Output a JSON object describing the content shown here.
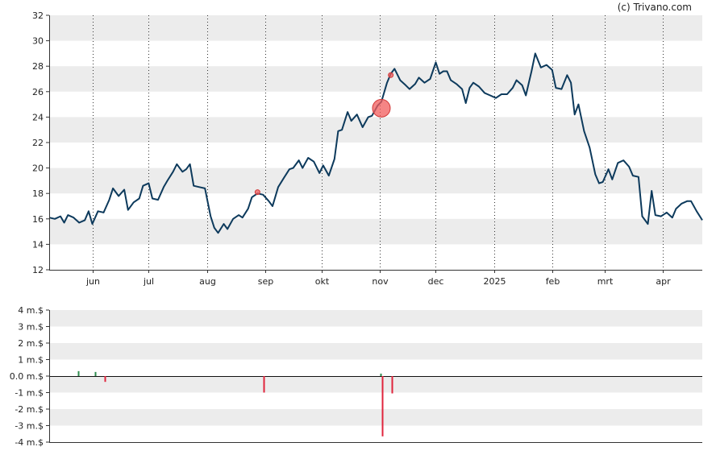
{
  "credit": "(c) Trivano.com",
  "chart_data": [
    {
      "type": "line",
      "title": "",
      "xlabel": "",
      "ylabel": "",
      "ylim": [
        12,
        32
      ],
      "yticks": [
        12,
        14,
        16,
        18,
        20,
        22,
        24,
        26,
        28,
        30,
        32
      ],
      "grid": "alternating horizontal bands, dotted vertical month lines",
      "months": [
        {
          "label": "jun",
          "date": "2024-06-01"
        },
        {
          "label": "jul",
          "date": "2024-07-01"
        },
        {
          "label": "aug",
          "date": "2024-08-01"
        },
        {
          "label": "sep",
          "date": "2024-09-01"
        },
        {
          "label": "okt",
          "date": "2024-10-01"
        },
        {
          "label": "nov",
          "date": "2024-11-01"
        },
        {
          "label": "dec",
          "date": "2024-12-01"
        },
        {
          "label": "2025",
          "date": "2025-01-01"
        },
        {
          "label": "feb",
          "date": "2025-02-01"
        },
        {
          "label": "mrt",
          "date": "2025-03-01"
        },
        {
          "label": "apr",
          "date": "2025-04-01"
        }
      ],
      "xlim": [
        "2024-05-09",
        "2025-04-22"
      ],
      "line_color": "#0d3a5c",
      "series": [
        {
          "points": [
            [
              "2024-05-09",
              16.1
            ],
            [
              "2024-05-12",
              16.0
            ],
            [
              "2024-05-15",
              16.2
            ],
            [
              "2024-05-17",
              15.7
            ],
            [
              "2024-05-19",
              16.3
            ],
            [
              "2024-05-22",
              16.1
            ],
            [
              "2024-05-25",
              15.7
            ],
            [
              "2024-05-28",
              15.9
            ],
            [
              "2024-05-30",
              16.6
            ],
            [
              "2024-06-01",
              15.6
            ],
            [
              "2024-06-04",
              16.6
            ],
            [
              "2024-06-07",
              16.5
            ],
            [
              "2024-06-10",
              17.5
            ],
            [
              "2024-06-12",
              18.4
            ],
            [
              "2024-06-15",
              17.8
            ],
            [
              "2024-06-18",
              18.3
            ],
            [
              "2024-06-20",
              16.7
            ],
            [
              "2024-06-23",
              17.3
            ],
            [
              "2024-06-26",
              17.6
            ],
            [
              "2024-06-28",
              18.6
            ],
            [
              "2024-07-01",
              18.8
            ],
            [
              "2024-07-03",
              17.6
            ],
            [
              "2024-07-06",
              17.5
            ],
            [
              "2024-07-09",
              18.5
            ],
            [
              "2024-07-11",
              19.0
            ],
            [
              "2024-07-14",
              19.7
            ],
            [
              "2024-07-16",
              20.3
            ],
            [
              "2024-07-19",
              19.7
            ],
            [
              "2024-07-21",
              19.9
            ],
            [
              "2024-07-23",
              20.3
            ],
            [
              "2024-07-25",
              18.6
            ],
            [
              "2024-07-28",
              18.5
            ],
            [
              "2024-07-31",
              18.4
            ],
            [
              "2024-08-03",
              16.2
            ],
            [
              "2024-08-05",
              15.3
            ],
            [
              "2024-08-07",
              14.9
            ],
            [
              "2024-08-10",
              15.6
            ],
            [
              "2024-08-12",
              15.2
            ],
            [
              "2024-08-15",
              16.0
            ],
            [
              "2024-08-18",
              16.3
            ],
            [
              "2024-08-20",
              16.1
            ],
            [
              "2024-08-23",
              16.8
            ],
            [
              "2024-08-25",
              17.7
            ],
            [
              "2024-08-28",
              18.0
            ],
            [
              "2024-08-31",
              17.9
            ],
            [
              "2024-09-03",
              17.4
            ],
            [
              "2024-09-05",
              17.0
            ],
            [
              "2024-09-08",
              18.5
            ],
            [
              "2024-09-11",
              19.2
            ],
            [
              "2024-09-14",
              19.9
            ],
            [
              "2024-09-16",
              20.0
            ],
            [
              "2024-09-19",
              20.6
            ],
            [
              "2024-09-21",
              20.0
            ],
            [
              "2024-09-24",
              20.8
            ],
            [
              "2024-09-27",
              20.5
            ],
            [
              "2024-09-30",
              19.6
            ],
            [
              "2024-10-02",
              20.2
            ],
            [
              "2024-10-05",
              19.4
            ],
            [
              "2024-10-08",
              20.7
            ],
            [
              "2024-10-10",
              22.9
            ],
            [
              "2024-10-12",
              23.0
            ],
            [
              "2024-10-15",
              24.4
            ],
            [
              "2024-10-17",
              23.7
            ],
            [
              "2024-10-20",
              24.2
            ],
            [
              "2024-10-23",
              23.2
            ],
            [
              "2024-10-26",
              24.0
            ],
            [
              "2024-10-28",
              24.1
            ],
            [
              "2024-10-31",
              24.9
            ],
            [
              "2024-11-02",
              25.2
            ],
            [
              "2024-11-05",
              26.7
            ],
            [
              "2024-11-07",
              27.4
            ],
            [
              "2024-11-09",
              27.8
            ],
            [
              "2024-11-12",
              26.9
            ],
            [
              "2024-11-15",
              26.5
            ],
            [
              "2024-11-17",
              26.2
            ],
            [
              "2024-11-20",
              26.6
            ],
            [
              "2024-11-22",
              27.1
            ],
            [
              "2024-11-25",
              26.7
            ],
            [
              "2024-11-28",
              27.0
            ],
            [
              "2024-12-01",
              28.3
            ],
            [
              "2024-12-03",
              27.4
            ],
            [
              "2024-12-05",
              27.6
            ],
            [
              "2024-12-07",
              27.6
            ],
            [
              "2024-12-09",
              26.9
            ],
            [
              "2024-12-12",
              26.6
            ],
            [
              "2024-12-15",
              26.2
            ],
            [
              "2024-12-17",
              25.1
            ],
            [
              "2024-12-19",
              26.3
            ],
            [
              "2024-12-21",
              26.7
            ],
            [
              "2024-12-24",
              26.4
            ],
            [
              "2024-12-27",
              25.9
            ],
            [
              "2024-12-30",
              25.7
            ],
            [
              "2025-01-02",
              25.5
            ],
            [
              "2025-01-05",
              25.8
            ],
            [
              "2025-01-08",
              25.8
            ],
            [
              "2025-01-11",
              26.3
            ],
            [
              "2025-01-13",
              26.9
            ],
            [
              "2025-01-16",
              26.5
            ],
            [
              "2025-01-18",
              25.7
            ],
            [
              "2025-01-21",
              27.6
            ],
            [
              "2025-01-23",
              29.0
            ],
            [
              "2025-01-26",
              27.9
            ],
            [
              "2025-01-29",
              28.1
            ],
            [
              "2025-02-01",
              27.7
            ],
            [
              "2025-02-03",
              26.3
            ],
            [
              "2025-02-06",
              26.2
            ],
            [
              "2025-02-09",
              27.3
            ],
            [
              "2025-02-11",
              26.7
            ],
            [
              "2025-02-13",
              24.2
            ],
            [
              "2025-02-15",
              25.0
            ],
            [
              "2025-02-18",
              22.9
            ],
            [
              "2025-02-21",
              21.6
            ],
            [
              "2025-02-24",
              19.5
            ],
            [
              "2025-02-26",
              18.8
            ],
            [
              "2025-02-28",
              18.9
            ],
            [
              "2025-03-03",
              19.9
            ],
            [
              "2025-03-05",
              19.1
            ],
            [
              "2025-03-08",
              20.4
            ],
            [
              "2025-03-11",
              20.6
            ],
            [
              "2025-03-14",
              20.1
            ],
            [
              "2025-03-16",
              19.4
            ],
            [
              "2025-03-19",
              19.3
            ],
            [
              "2025-03-21",
              16.2
            ],
            [
              "2025-03-24",
              15.6
            ],
            [
              "2025-03-26",
              18.2
            ],
            [
              "2025-03-28",
              16.3
            ],
            [
              "2025-03-31",
              16.2
            ],
            [
              "2025-04-03",
              16.5
            ],
            [
              "2025-04-06",
              16.1
            ],
            [
              "2025-04-08",
              16.8
            ],
            [
              "2025-04-11",
              17.2
            ],
            [
              "2025-04-14",
              17.4
            ],
            [
              "2025-04-16",
              17.4
            ],
            [
              "2025-04-19",
              16.6
            ],
            [
              "2025-04-22",
              15.9
            ]
          ]
        }
      ],
      "markers": [
        {
          "date": "2024-08-28",
          "value": 18.1,
          "size": "small",
          "color": "#f25c5c"
        },
        {
          "date": "2024-11-02",
          "value": 24.7,
          "size": "large",
          "color": "#f25c5c"
        },
        {
          "date": "2024-11-07",
          "value": 27.3,
          "size": "small",
          "color": "#f25c5c"
        }
      ]
    },
    {
      "type": "bar",
      "title": "",
      "xlabel": "",
      "ylabel": "",
      "ylim": [
        -4,
        4
      ],
      "ytick_labels": [
        "-4 m.$",
        "-3 m.$",
        "-2 m.$",
        "-1 m.$",
        "0.0 m.$",
        "1 m.$",
        "2 m.$",
        "3 m.$",
        "4 m.$"
      ],
      "yticks": [
        -4,
        -3,
        -2,
        -1,
        0,
        1,
        2,
        3,
        4
      ],
      "positive_color": "#2e8b4e",
      "negative_color": "#e0243c",
      "bars": [
        {
          "date": "2024-05-25",
          "value": 0.3
        },
        {
          "date": "2024-06-03",
          "value": 0.25
        },
        {
          "date": "2024-06-07",
          "value": -0.35
        },
        {
          "date": "2024-08-31",
          "value": -1.0
        },
        {
          "date": "2024-11-02",
          "value": 0.15
        },
        {
          "date": "2024-11-02",
          "value": -3.65
        },
        {
          "date": "2024-11-07",
          "value": -1.05
        }
      ]
    }
  ]
}
